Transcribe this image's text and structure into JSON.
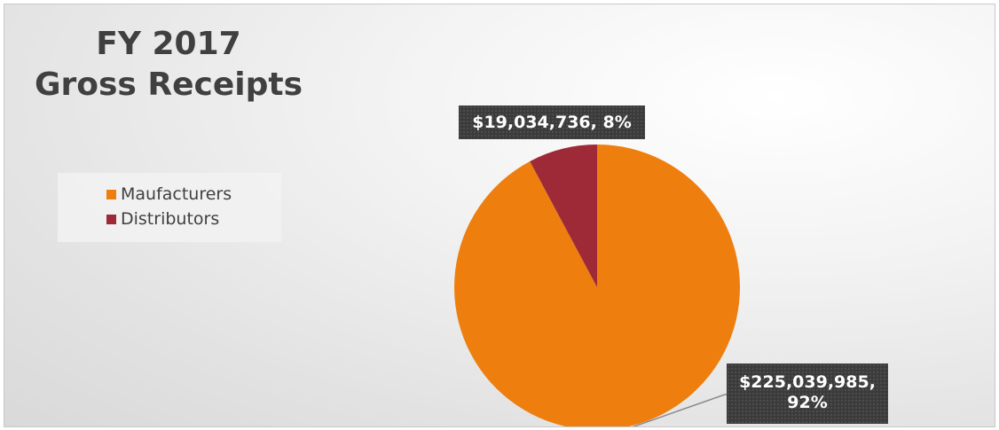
{
  "chart_data": {
    "type": "pie",
    "title": [
      "FY 2017",
      "Gross Receipts"
    ],
    "categories": [
      "Maufacturers",
      "Distributors"
    ],
    "values": [
      225039985,
      19034736
    ],
    "percentages": [
      92,
      8
    ],
    "data_labels": [
      "$225,039,985, 92%",
      "$19,034,736, 8%"
    ],
    "legend": {
      "position": "left"
    },
    "colors": [
      "#ee7f0f",
      "#9e2a37"
    ]
  }
}
